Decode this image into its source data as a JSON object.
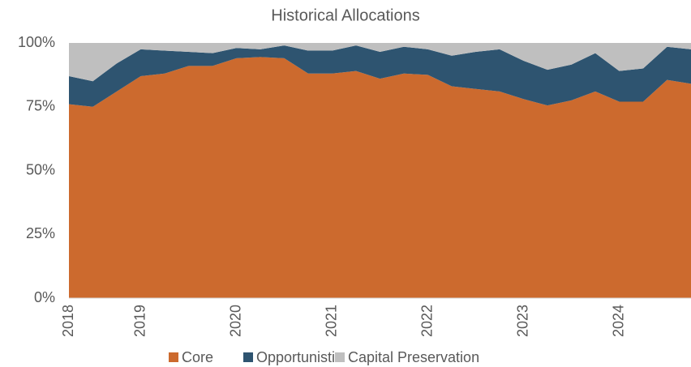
{
  "chart_data": {
    "type": "stacked_area",
    "title": "Historical Allocations",
    "categories": [
      "2018",
      null,
      null,
      "2019",
      null,
      null,
      null,
      "2020",
      null,
      null,
      null,
      "2021",
      null,
      null,
      null,
      "2022",
      null,
      null,
      null,
      "2023",
      null,
      null,
      null,
      "2024",
      null,
      null,
      null
    ],
    "series": [
      {
        "name": "Core",
        "color": "#cc6a2e",
        "values": [
          76,
          75,
          81,
          87,
          88,
          91,
          91,
          94,
          94.5,
          94,
          88,
          88,
          89,
          86,
          88,
          87.5,
          83,
          82,
          81,
          78,
          75.5,
          77.5,
          81,
          77,
          77,
          85.5,
          84
        ]
      },
      {
        "name": "Opportunistic",
        "color": "#2e5470",
        "values": [
          11,
          10,
          11,
          10.5,
          9,
          5.5,
          5,
          4,
          3,
          5,
          9,
          9,
          10,
          10.5,
          10.5,
          10,
          12,
          14.5,
          16.5,
          15,
          14,
          14,
          15,
          12,
          13,
          13,
          13.5
        ]
      },
      {
        "name": "Capital Preservation",
        "color": "#bfbfbf",
        "values": [
          13,
          15,
          8,
          2.5,
          3,
          3.5,
          4,
          2,
          2.5,
          1,
          3,
          3,
          1,
          3.5,
          1.5,
          2.5,
          5,
          3.5,
          2.5,
          7,
          10.5,
          8.5,
          4,
          11,
          10,
          1.5,
          2.5
        ]
      }
    ],
    "ylim": [
      0,
      100
    ],
    "yticks": [
      {
        "value": 0,
        "label": "0%"
      },
      {
        "value": 25,
        "label": "25%"
      },
      {
        "value": 50,
        "label": "50%"
      },
      {
        "value": 75,
        "label": "75%"
      },
      {
        "value": 100,
        "label": "100%"
      }
    ],
    "grid": false,
    "legend": "bottom"
  }
}
